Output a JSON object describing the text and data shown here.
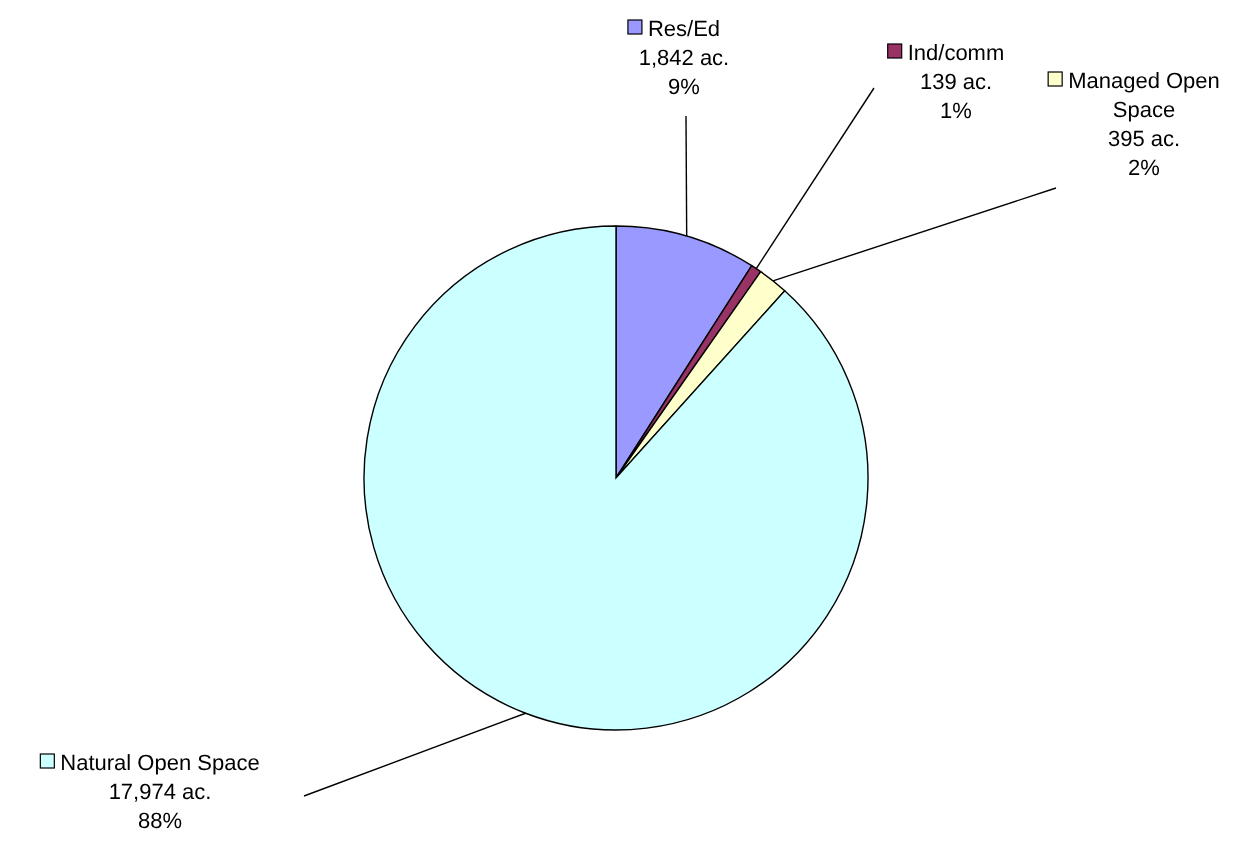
{
  "chart_data": {
    "type": "pie",
    "categories": [
      "Res/Ed",
      "Ind/comm",
      "Managed Open Space",
      "Natural Open Space"
    ],
    "values": [
      1842,
      139,
      395,
      17974
    ],
    "legend": "top right",
    "colors": [
      "#9999ff",
      "#993366",
      "#ffffcc",
      "#ccffff"
    ],
    "value_labels": [
      "1,842 ac.\n9%",
      "139 ac.\n1%",
      "395 ac.\n2%",
      "17,974 ac.\n88%"
    ]
  }
}
